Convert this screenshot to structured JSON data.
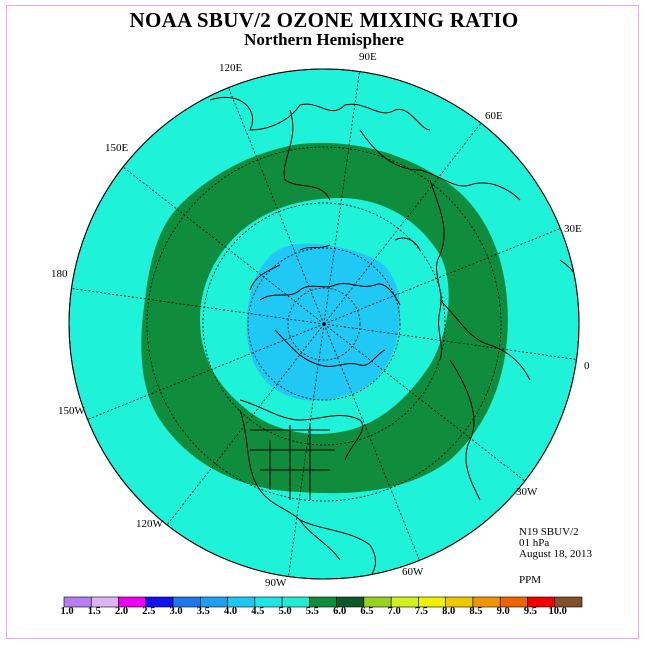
{
  "title": "NOAA SBUV/2 OZONE MIXING RATIO",
  "subtitle": "Northern Hemisphere",
  "longitude_labels": [
    "90E",
    "60E",
    "30E",
    "0",
    "30W",
    "60W",
    "90W",
    "120W",
    "150W",
    "180",
    "150E",
    "120E"
  ],
  "info": {
    "satellite": "N19 SBUV/2",
    "level": "01 hPa",
    "date": "August 18, 2013",
    "units": "PPM"
  },
  "colorbar": {
    "ticks": [
      "1.0",
      "1.5",
      "2.0",
      "2.5",
      "3.0",
      "3.5",
      "4.0",
      "4.5",
      "5.0",
      "5.5",
      "6.0",
      "6.5",
      "7.0",
      "7.5",
      "8.0",
      "8.5",
      "9.0",
      "9.5",
      "10.0"
    ],
    "colors": [
      "#b67ef0",
      "#dcb4f0",
      "#f000f0",
      "#1010f0",
      "#1e78ec",
      "#1ea0f0",
      "#1ec8f0",
      "#1ee6e6",
      "#1eedd0",
      "#0f8c3c",
      "#0a5a28",
      "#96d21e",
      "#d2f01e",
      "#f0f000",
      "#f0c800",
      "#f09600",
      "#f06400",
      "#f00000",
      "#825028"
    ]
  },
  "colors": {
    "ocean_band": "#1ef2d8",
    "high_ring": "#0f8c3c",
    "polar_low": "#20c8f5",
    "frame": "#e8a9e8"
  }
}
